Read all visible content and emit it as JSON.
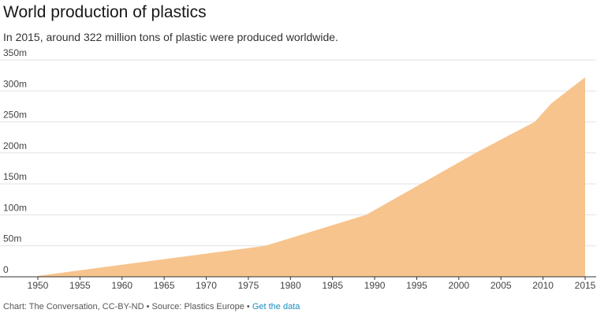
{
  "title": "World production of plastics",
  "subtitle": "In 2015, around 322 million tons of plastic were produced worldwide.",
  "footer": {
    "credit": "Chart: The Conversation, CC-BY-ND",
    "separator": " • ",
    "source": "Source: Plastics Europe",
    "link_label": "Get the data"
  },
  "colors": {
    "area_fill": "#f7c48e",
    "grid": "#e2e2e2",
    "baseline": "#333333",
    "link": "#1a8fc0"
  },
  "chart_data": {
    "type": "area",
    "title": "World production of plastics",
    "xlabel": "",
    "ylabel": "",
    "grid": true,
    "legend": "none",
    "xlim": [
      1950,
      2015
    ],
    "ylim": [
      0,
      350
    ],
    "x_ticks": [
      1950,
      1955,
      1960,
      1965,
      1970,
      1975,
      1980,
      1985,
      1990,
      1995,
      2000,
      2005,
      2010,
      2015
    ],
    "x_tick_labels": [
      "1950",
      "1955",
      "1960",
      "1965",
      "1970",
      "1975",
      "1980",
      "1985",
      "1990",
      "1995",
      "2000",
      "2005",
      "2010",
      "2015"
    ],
    "y_ticks": [
      0,
      50,
      100,
      150,
      200,
      250,
      300,
      350
    ],
    "y_tick_labels": [
      "0",
      "50m",
      "100m",
      "150m",
      "200m",
      "250m",
      "300m",
      "350m"
    ],
    "series": [
      {
        "x": [
          1950,
          1977,
          1989,
          2002,
          2009,
          2011,
          2015
        ],
        "values": [
          1.5,
          50,
          100,
          200,
          250,
          280,
          322
        ]
      }
    ]
  }
}
